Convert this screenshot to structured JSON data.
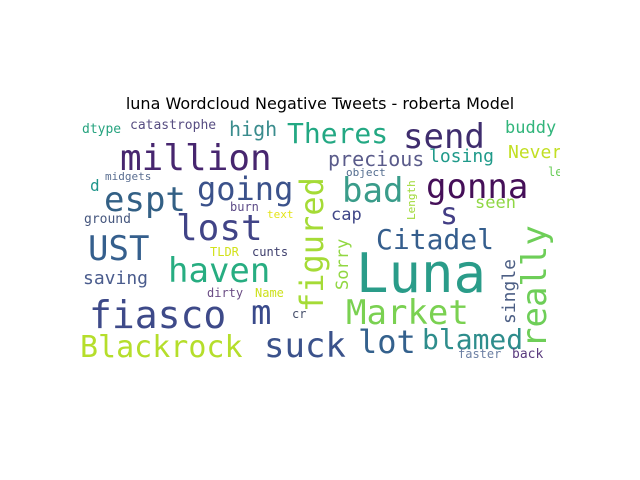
{
  "title": "luna Wordcloud Negative Tweets - roberta Model",
  "words": [
    {
      "text": "Luna",
      "color": "#2a9c89"
    },
    {
      "text": "million",
      "color": "#47266f"
    },
    {
      "text": "fiasco",
      "color": "#3e4a89"
    },
    {
      "text": "Blackrock",
      "color": "#b5de2b"
    },
    {
      "text": "Market",
      "color": "#7ad151"
    },
    {
      "text": "suck",
      "color": "#3b528b"
    },
    {
      "text": "lot",
      "color": "#34618d"
    },
    {
      "text": "blamed",
      "color": "#2e8d8c"
    },
    {
      "text": "gonna",
      "color": "#450f58"
    },
    {
      "text": "send",
      "color": "#3f2d6e"
    },
    {
      "text": "Theres",
      "color": "#23a883"
    },
    {
      "text": "espt",
      "color": "#336085"
    },
    {
      "text": "going",
      "color": "#3b528b"
    },
    {
      "text": "bad",
      "color": "#3a9c8a"
    },
    {
      "text": "lost",
      "color": "#414487"
    },
    {
      "text": "UST",
      "color": "#355f8d"
    },
    {
      "text": "haven",
      "color": "#27ad81"
    },
    {
      "text": "m",
      "color": "#3a4a8b"
    },
    {
      "text": "Citadel",
      "color": "#355e8d"
    },
    {
      "text": "s",
      "color": "#433e85"
    },
    {
      "text": "really",
      "color": "#6ece58"
    },
    {
      "text": "figured",
      "color": "#a5db36"
    },
    {
      "text": "precious",
      "color": "#5a5b8a"
    },
    {
      "text": "losing",
      "color": "#1f9a8a"
    },
    {
      "text": "high",
      "color": "#3a8c8d"
    },
    {
      "text": "buddy",
      "color": "#31b57b"
    },
    {
      "text": "Never",
      "color": "#c2df23"
    },
    {
      "text": "cap",
      "color": "#404788"
    },
    {
      "text": "seen",
      "color": "#8fd744"
    },
    {
      "text": "saving",
      "color": "#4a5c8d"
    },
    {
      "text": "Sorry",
      "color": "#91d742"
    },
    {
      "text": "single",
      "color": "#4d5f85"
    },
    {
      "text": "catastrophe",
      "color": "#574d82"
    },
    {
      "text": "dtype",
      "color": "#26a37f"
    },
    {
      "text": "midgets",
      "color": "#5a6e91"
    },
    {
      "text": "d",
      "color": "#1f968b"
    },
    {
      "text": "object",
      "color": "#536c8f"
    },
    {
      "text": "let",
      "color": "#6bcd5a"
    },
    {
      "text": "burn",
      "color": "#5d4b87"
    },
    {
      "text": "text",
      "color": "#e4e419"
    },
    {
      "text": "ground",
      "color": "#46577e"
    },
    {
      "text": "TLDR",
      "color": "#d2e21b"
    },
    {
      "text": "cunts",
      "color": "#3e3f6d"
    },
    {
      "text": "Length",
      "color": "#a0da39"
    },
    {
      "text": "dirty",
      "color": "#6b4d85"
    },
    {
      "text": "Name",
      "color": "#cde11d"
    },
    {
      "text": "cr",
      "color": "#464f6b"
    },
    {
      "text": "faster",
      "color": "#6c7fa3"
    },
    {
      "text": "back",
      "color": "#5a3a7e"
    }
  ]
}
